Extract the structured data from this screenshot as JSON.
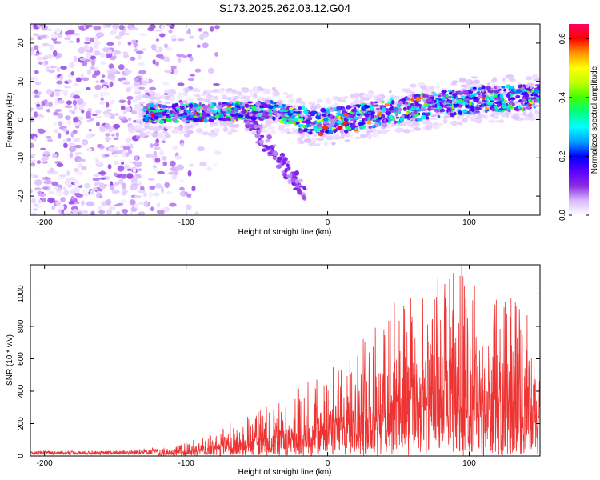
{
  "title": "S173.2025.262.03.12.G04",
  "chart_data": [
    {
      "type": "heatmap",
      "name": "spectrogram",
      "xlabel": "Height of straight line (km)",
      "ylabel": "Frequency (Hz)",
      "xlim": [
        -210,
        150
      ],
      "ylim": [
        -25,
        25
      ],
      "xticks": [
        -200,
        -100,
        0,
        100
      ],
      "yticks": [
        -20,
        -10,
        0,
        10,
        20
      ],
      "colorbar": {
        "label": "Normalized spectral amplitude",
        "range": [
          0.0,
          0.65
        ],
        "ticks": [
          0.0,
          0.2,
          0.4,
          0.6
        ],
        "tick_labels": [
          "0.0",
          "0.2",
          "0.4",
          "0.6"
        ],
        "colors": [
          "#ffffff",
          "#d9b8ff",
          "#8a2be2",
          "#5a00ff",
          "#0000ff",
          "#00a0ff",
          "#00ffff",
          "#00ff80",
          "#40ff00",
          "#c0ff00",
          "#ffff00",
          "#ff9900",
          "#ff0000",
          "#ff0066"
        ]
      },
      "features": {
        "noise_region_x": [
          -210,
          -100
        ],
        "signal_centerline": [
          {
            "x": -130,
            "y": 1.5
          },
          {
            "x": -80,
            "y": 2.0
          },
          {
            "x": -40,
            "y": 2.5
          },
          {
            "x": -10,
            "y": -1.0
          },
          {
            "x": 20,
            "y": 0.5
          },
          {
            "x": 60,
            "y": 3.0
          },
          {
            "x": 100,
            "y": 5.0
          },
          {
            "x": 150,
            "y": 6.0
          }
        ],
        "branch_negative_x": [
          -60,
          -15
        ],
        "branch_negative_y": [
          2,
          -20
        ]
      }
    },
    {
      "type": "line",
      "name": "snr",
      "xlabel": "Height of straight line (km)",
      "ylabel": "SNR (10 * v/v)",
      "xlim": [
        -210,
        150
      ],
      "ylim": [
        0,
        1180
      ],
      "xticks": [
        -200,
        -100,
        0,
        100
      ],
      "yticks": [
        0,
        200,
        400,
        600,
        800,
        1000
      ],
      "color": "#ee3333",
      "envelope": [
        {
          "x": -210,
          "y": 30
        },
        {
          "x": -150,
          "y": 30
        },
        {
          "x": -110,
          "y": 50
        },
        {
          "x": -90,
          "y": 100
        },
        {
          "x": -70,
          "y": 180
        },
        {
          "x": -50,
          "y": 260
        },
        {
          "x": -30,
          "y": 340
        },
        {
          "x": -10,
          "y": 420
        },
        {
          "x": 10,
          "y": 520
        },
        {
          "x": 30,
          "y": 700
        },
        {
          "x": 50,
          "y": 850
        },
        {
          "x": 70,
          "y": 950
        },
        {
          "x": 90,
          "y": 1080
        },
        {
          "x": 110,
          "y": 900
        },
        {
          "x": 130,
          "y": 850
        },
        {
          "x": 150,
          "y": 700
        }
      ]
    }
  ]
}
